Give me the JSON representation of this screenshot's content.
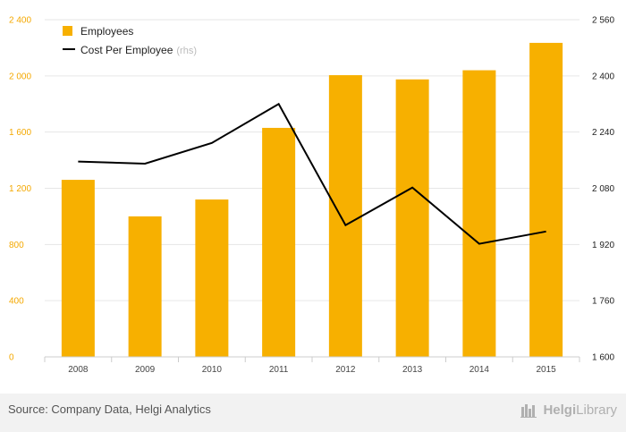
{
  "chart_data": {
    "type": "bar",
    "categories": [
      "2008",
      "2009",
      "2010",
      "2011",
      "2012",
      "2013",
      "2014",
      "2015"
    ],
    "series": [
      {
        "name": "Employees",
        "type": "bar",
        "axis": "left",
        "color": "#f7b000",
        "values": [
          1260,
          1000,
          1120,
          1630,
          2005,
          1975,
          2040,
          2235
        ]
      },
      {
        "name": "Cost Per Employee",
        "name_suffix": "(rhs)",
        "type": "line",
        "axis": "right",
        "color": "#000000",
        "values": [
          2156,
          2150,
          2209,
          2320,
          1975,
          2082,
          1922,
          1957
        ]
      }
    ],
    "ylim_left": [
      0,
      2400
    ],
    "yticks_left": [
      "0",
      "400",
      "800",
      "1 200",
      "1 600",
      "2 000",
      "2 400"
    ],
    "ylim_right": [
      1600,
      2560
    ],
    "yticks_right": [
      "1 600",
      "1 760",
      "1 920",
      "2 080",
      "2 240",
      "2 400",
      "2 560"
    ],
    "grid": true,
    "legend_position": "top-left"
  },
  "footer": {
    "source": "Source: Company Data, Helgi Analytics",
    "brand_prefix": "Helgi",
    "brand_suffix": "Library"
  },
  "colors": {
    "bar": "#f7b000",
    "line": "#000000",
    "left_axis_text": "#f4a800",
    "grid": "#e6e6e6",
    "footer_bg": "#f2f2f2"
  }
}
